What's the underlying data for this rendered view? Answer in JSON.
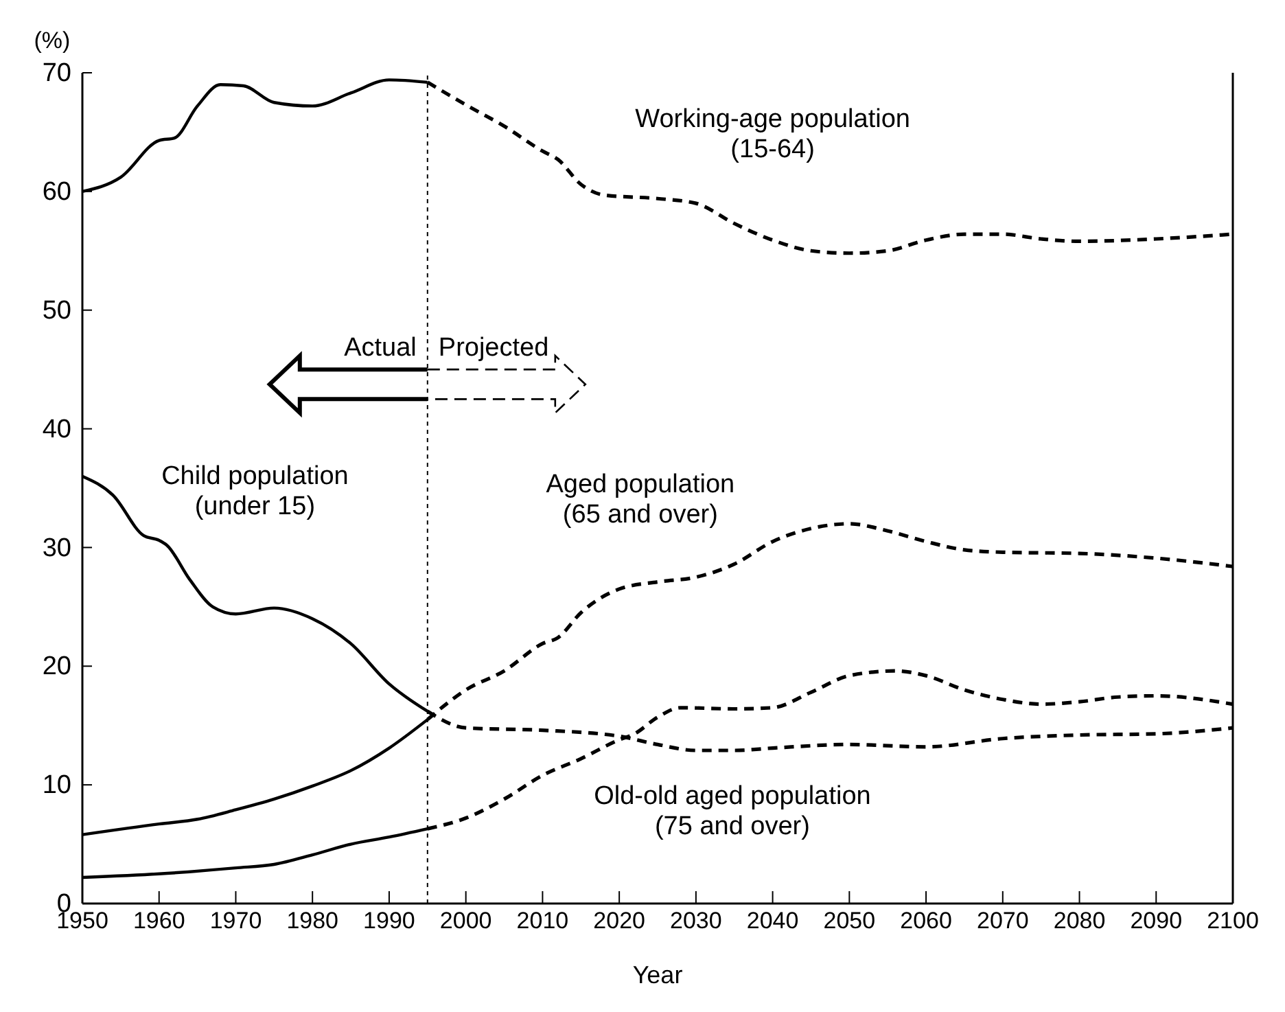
{
  "chart_data": {
    "type": "line",
    "xlabel": "Year",
    "ylabel": "(%)",
    "xlim": [
      1950,
      2100
    ],
    "xticks": [
      1950,
      1960,
      1970,
      1980,
      1990,
      2000,
      2010,
      2020,
      2030,
      2040,
      2050,
      2060,
      2070,
      2080,
      2090,
      2100
    ],
    "ylim": [
      0,
      70
    ],
    "yticks": [
      0,
      10,
      20,
      30,
      40,
      50,
      60,
      70
    ],
    "grid": false,
    "marker": "none",
    "ref_lines": [
      {
        "axis": "x",
        "value": 1995,
        "line_style": "dotted",
        "color": "#000000"
      }
    ],
    "series": [
      {
        "color": "#000000",
        "line_style": "solid",
        "x": [
          1950,
          1955,
          1960,
          1962,
          1965,
          1968,
          1971,
          1975,
          1980,
          1985,
          1990,
          1995
        ],
        "values": [
          60,
          61.2,
          64.3,
          64.5,
          67.2,
          69,
          68.9,
          67.5,
          67.2,
          68.3,
          69.4,
          69.2
        ]
      },
      {
        "color": "#000000",
        "line_style": "dashed",
        "x": [
          1995,
          2000,
          2005,
          2010,
          2012,
          2015,
          2018,
          2025,
          2030,
          2035,
          2040,
          2045,
          2050,
          2055,
          2060,
          2065,
          2070,
          2075,
          2080,
          2090,
          2100
        ],
        "values": [
          69.2,
          67.3,
          65.5,
          63.4,
          62.7,
          60.6,
          59.7,
          59.4,
          59,
          57.3,
          55.9,
          55,
          54.8,
          55,
          55.9,
          56.4,
          56.4,
          56,
          55.8,
          56,
          56.4
        ]
      },
      {
        "color": "#000000",
        "line_style": "solid",
        "x": [
          1950,
          1954,
          1958,
          1960,
          1961,
          1964,
          1967,
          1970,
          1975,
          1980,
          1985,
          1990,
          1995
        ],
        "values": [
          36,
          34.4,
          31,
          30.6,
          30.2,
          27.3,
          25,
          24.4,
          24.9,
          24,
          21.9,
          18.5,
          16.2
        ]
      },
      {
        "color": "#000000",
        "line_style": "dashed",
        "x": [
          1995,
          2000,
          2010,
          2020,
          2025,
          2030,
          2035,
          2040,
          2050,
          2060,
          2070,
          2080,
          2090,
          2100
        ],
        "values": [
          16.2,
          14.8,
          14.6,
          14.1,
          13.4,
          12.9,
          12.9,
          13.1,
          13.4,
          13.2,
          13.9,
          14.2,
          14.3,
          14.8
        ]
      },
      {
        "color": "#000000",
        "line_style": "solid",
        "x": [
          1950,
          1960,
          1965,
          1970,
          1975,
          1980,
          1985,
          1990,
          1995
        ],
        "values": [
          5.8,
          6.7,
          7.1,
          7.9,
          8.8,
          9.9,
          11.2,
          13.1,
          15.5
        ]
      },
      {
        "color": "#000000",
        "line_style": "dashed",
        "x": [
          1995,
          2000,
          2005,
          2010,
          2012,
          2015,
          2020,
          2025,
          2030,
          2035,
          2040,
          2045,
          2050,
          2055,
          2060,
          2065,
          2070,
          2080,
          2090,
          2100
        ],
        "values": [
          15.5,
          18,
          19.6,
          21.9,
          22.4,
          24.5,
          26.5,
          27.1,
          27.5,
          28.6,
          30.5,
          31.6,
          32,
          31.4,
          30.5,
          29.8,
          29.6,
          29.5,
          29.1,
          28.4
        ]
      },
      {
        "color": "#000000",
        "line_style": "solid",
        "x": [
          1950,
          1960,
          1970,
          1975,
          1980,
          1985,
          1990,
          1995
        ],
        "values": [
          2.2,
          2.5,
          3,
          3.3,
          4.1,
          5,
          5.6,
          6.3
        ]
      },
      {
        "color": "#000000",
        "line_style": "dashed",
        "x": [
          1995,
          2000,
          2005,
          2010,
          2015,
          2020,
          2022,
          2025,
          2028,
          2035,
          2040,
          2045,
          2050,
          2056,
          2060,
          2065,
          2070,
          2075,
          2080,
          2085,
          2090,
          2100
        ],
        "values": [
          6.3,
          7.2,
          8.8,
          10.8,
          12.2,
          13.8,
          14.3,
          15.7,
          16.5,
          16.4,
          16.5,
          17.8,
          19.2,
          19.6,
          19.2,
          18,
          17.2,
          16.8,
          17,
          17.4,
          17.5,
          16.8
        ]
      }
    ],
    "annotations": [
      "Working-age population\n(15-64)",
      "Child population\n(under 15)",
      "Aged population\n(65 and over)",
      "Old-old aged population\n(75 and over)",
      "Actual",
      "Projected"
    ]
  }
}
